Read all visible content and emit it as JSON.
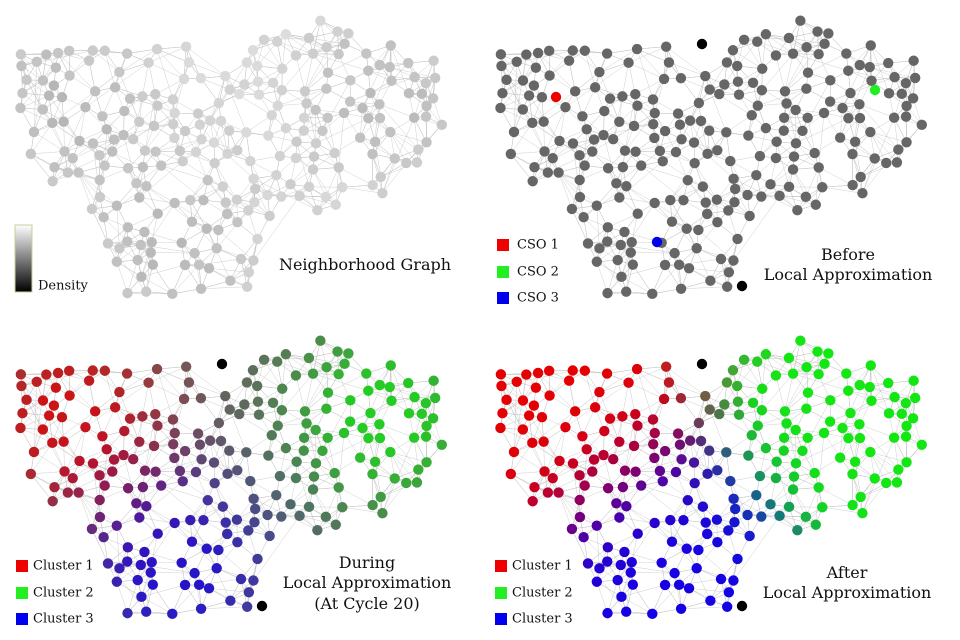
{
  "panels": [
    {
      "label": [
        "Neighborhood Graph"
      ],
      "legend_title": "Density"
    },
    {
      "label": [
        "Before",
        "Local Approximation"
      ],
      "legend": [
        "CSO 1",
        "CSO 2",
        "CSO 3"
      ]
    },
    {
      "label": [
        "During",
        "Local Approximation",
        "(At Cycle 20)"
      ],
      "legend": [
        "Cluster 1",
        "Cluster 2",
        "Cluster 3"
      ]
    },
    {
      "label": [
        "After",
        "Local Approximation"
      ],
      "legend": [
        "Cluster 1",
        "Cluster 2",
        "Cluster 3"
      ]
    }
  ]
}
